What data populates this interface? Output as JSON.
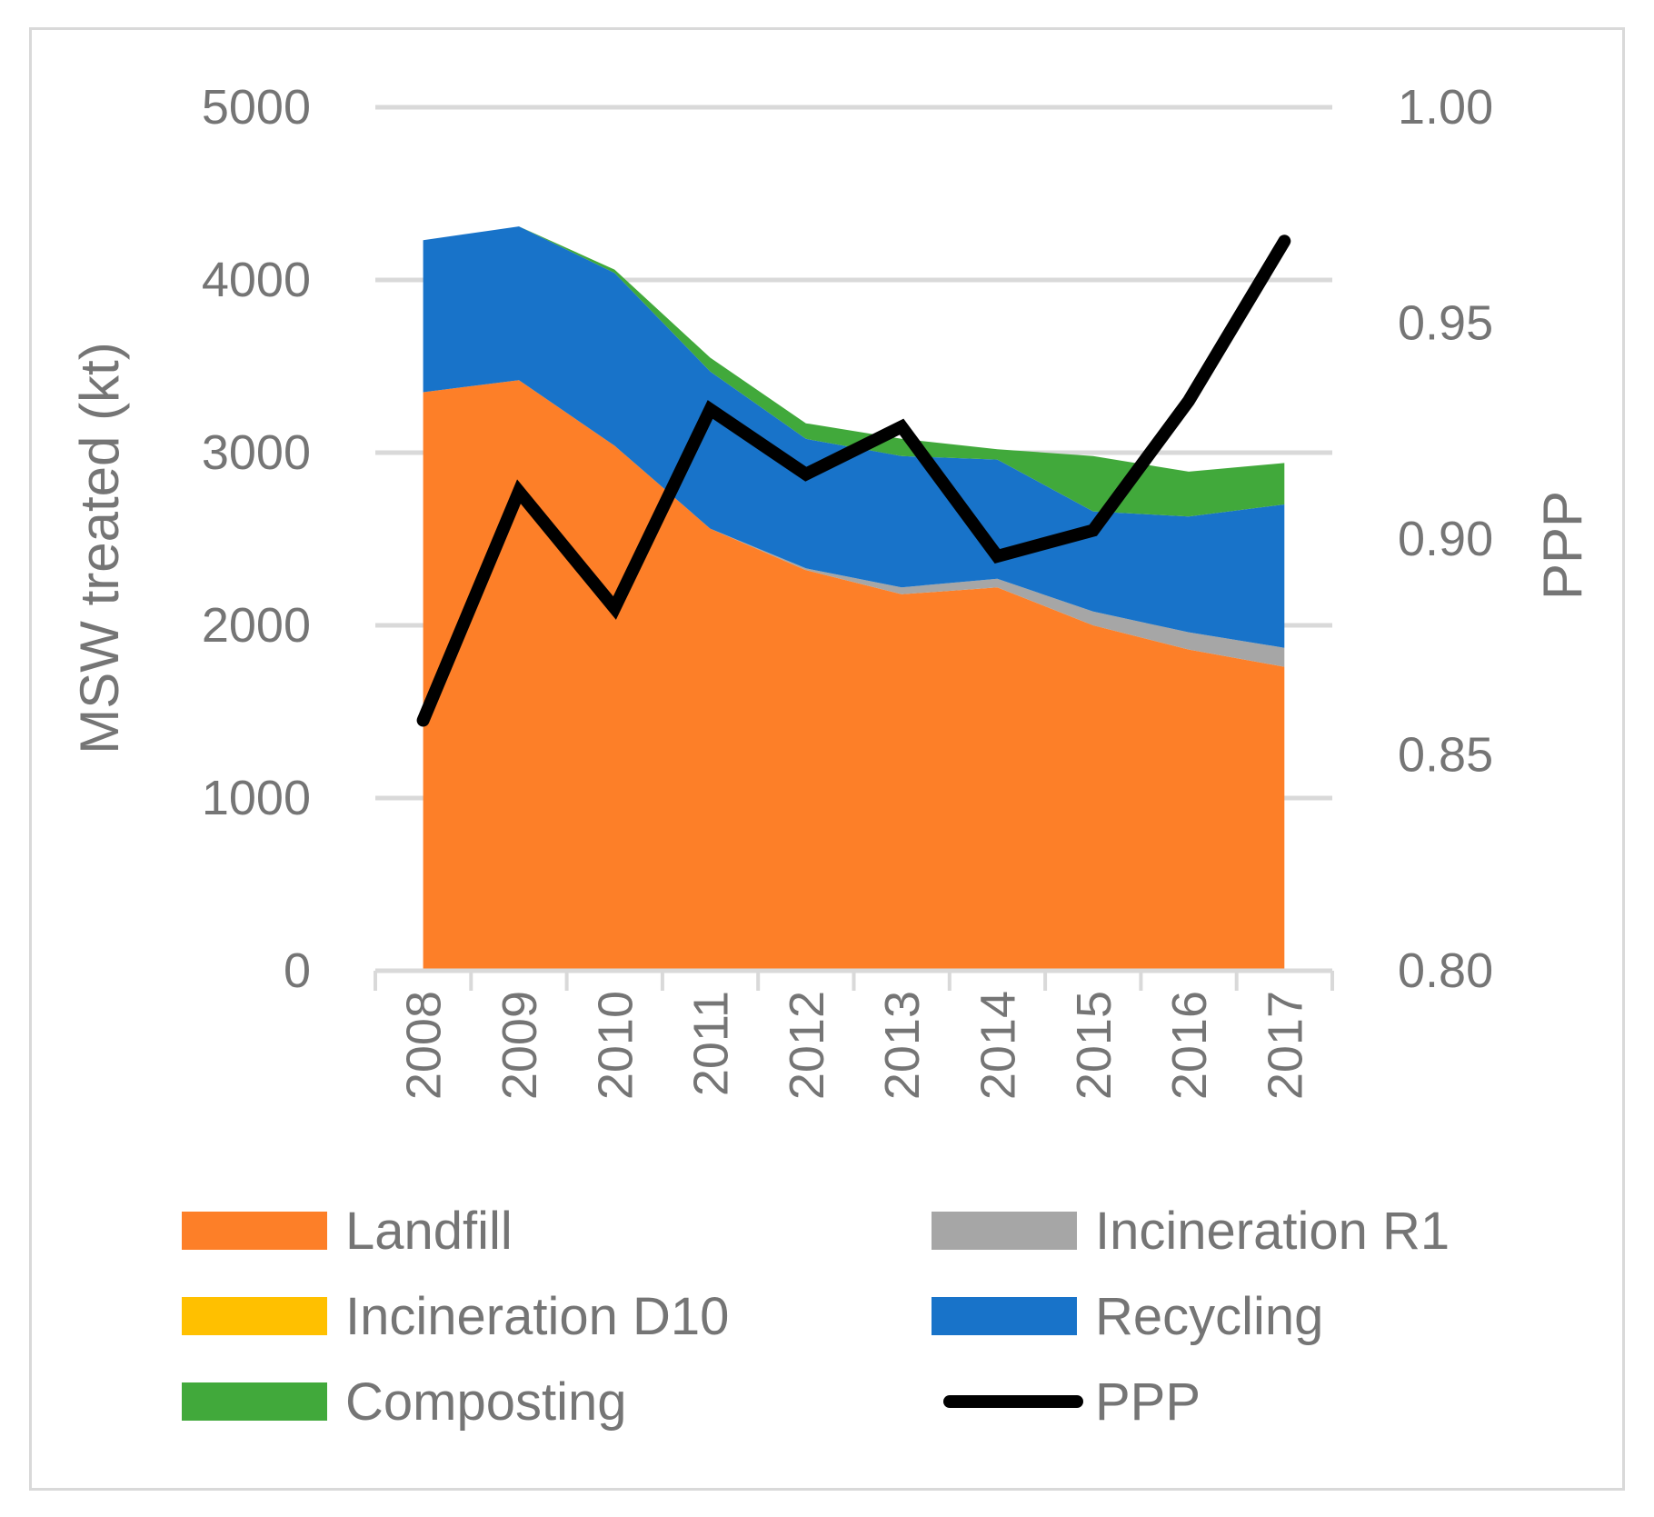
{
  "chart_data": {
    "type": "area",
    "stacked": true,
    "categories": [
      "2008",
      "2009",
      "2010",
      "2011",
      "2012",
      "2013",
      "2014",
      "2015",
      "2016",
      "2017"
    ],
    "series": [
      {
        "name": "Landfill",
        "color": "#fd7f28",
        "values": [
          3350,
          3420,
          3040,
          2560,
          2320,
          2180,
          2220,
          2000,
          1860,
          1760
        ]
      },
      {
        "name": "Incineration R1",
        "color": "#a6a6a6",
        "values": [
          0,
          0,
          0,
          0,
          10,
          40,
          50,
          80,
          100,
          110
        ]
      },
      {
        "name": "Incineration D10",
        "color": "#ffc000",
        "values": [
          0,
          0,
          0,
          0,
          0,
          0,
          0,
          0,
          0,
          0
        ]
      },
      {
        "name": "Recycling",
        "color": "#1873c9",
        "values": [
          880,
          890,
          1000,
          910,
          750,
          760,
          690,
          580,
          670,
          830
        ]
      },
      {
        "name": "Composting",
        "color": "#41a93b",
        "values": [
          0,
          0,
          20,
          80,
          90,
          100,
          60,
          320,
          260,
          240
        ]
      }
    ],
    "line_series": {
      "name": "PPP",
      "color": "#000000",
      "axis": "right",
      "values": [
        0.858,
        0.911,
        0.884,
        0.93,
        0.915,
        0.926,
        0.896,
        0.902,
        0.932,
        0.969
      ]
    },
    "ylabel": "MSW treated (kt)",
    "ylim": [
      0,
      5000
    ],
    "yticks": [
      0,
      1000,
      2000,
      3000,
      4000,
      5000
    ],
    "y2label": "PPP",
    "y2lim": [
      0.8,
      1.0
    ],
    "y2ticks": [
      "0.80",
      "0.85",
      "0.90",
      "0.95",
      "1.00"
    ],
    "grid": true,
    "legend": [
      {
        "label": "Landfill",
        "color": "#fd7f28",
        "kind": "area"
      },
      {
        "label": "Incineration R1",
        "color": "#a6a6a6",
        "kind": "area"
      },
      {
        "label": "Incineration D10",
        "color": "#ffc000",
        "kind": "area"
      },
      {
        "label": "Recycling",
        "color": "#1873c9",
        "kind": "area"
      },
      {
        "label": "Composting",
        "color": "#41a93b",
        "kind": "area"
      },
      {
        "label": "PPP",
        "color": "#000000",
        "kind": "line"
      }
    ],
    "legend_position": "bottom"
  }
}
